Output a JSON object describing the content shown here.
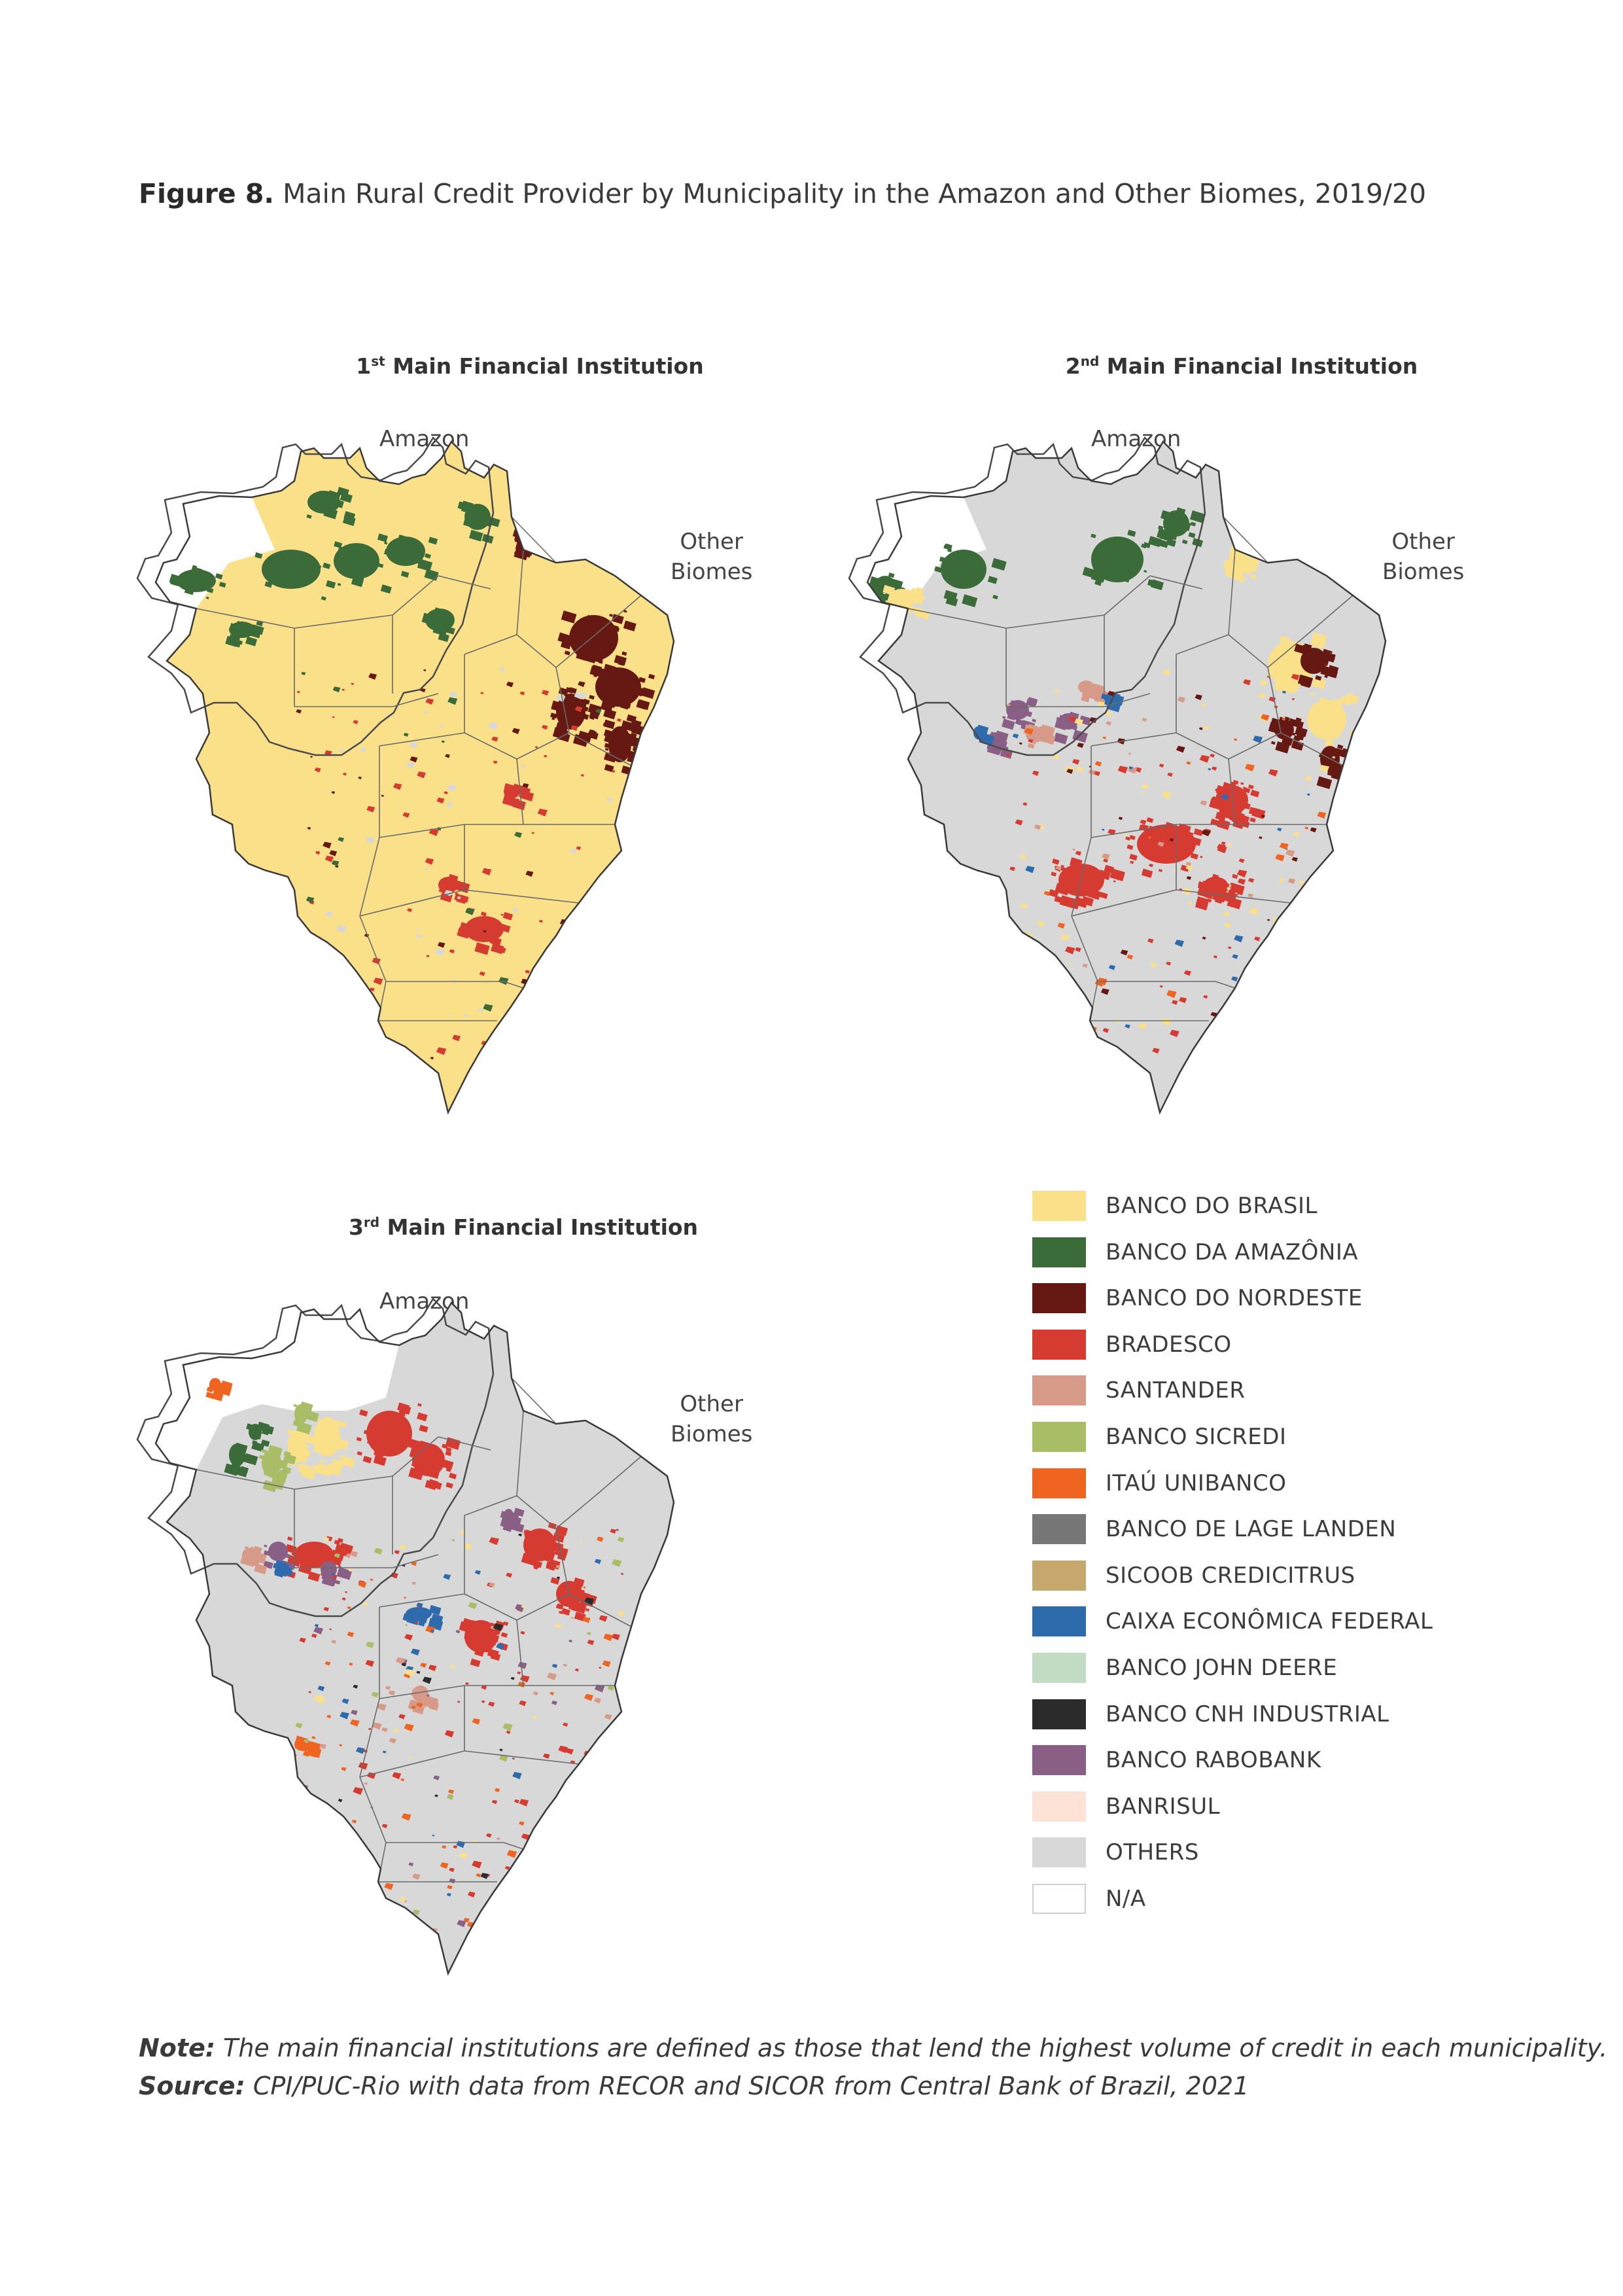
{
  "figure": {
    "label": "Figure 8.",
    "title": "Main Rural Credit Provider by Municipality in the Amazon and Other Biomes, 2019/20"
  },
  "panels": [
    {
      "rank": "1",
      "suffix": "st",
      "title": " Main Financial Institution",
      "amazon_label": "Amazon",
      "other_label_1": "Other",
      "other_label_2": "Biomes",
      "dominant": "BANCO DO BRASIL"
    },
    {
      "rank": "2",
      "suffix": "nd",
      "title": " Main Financial Institution",
      "amazon_label": "Amazon",
      "other_label_1": "Other",
      "other_label_2": "Biomes",
      "dominant": "BRADESCO"
    },
    {
      "rank": "3",
      "suffix": "rd",
      "title": " Main Financial Institution",
      "amazon_label": "Amazon",
      "other_label_1": "Other",
      "other_label_2": "Biomes",
      "dominant": "OTHERS"
    }
  ],
  "legend": [
    {
      "label": "BANCO DO BRASIL",
      "color": "#fbe08a"
    },
    {
      "label": "BANCO DA AMAZÔNIA",
      "color": "#3c6b3a"
    },
    {
      "label": "BANCO DO NORDESTE",
      "color": "#661812"
    },
    {
      "label": "BRADESCO",
      "color": "#d53b30"
    },
    {
      "label": "SANTANDER",
      "color": "#d89a88"
    },
    {
      "label": "BANCO SICREDI",
      "color": "#a9bd67"
    },
    {
      "label": "ITAÚ UNIBANCO",
      "color": "#ee6420"
    },
    {
      "label": "BANCO DE LAGE LANDEN",
      "color": "#777777"
    },
    {
      "label": "SICOOB CREDICITRUS",
      "color": "#c6a86f"
    },
    {
      "label": "CAIXA ECONÔMICA FEDERAL",
      "color": "#2e6bad"
    },
    {
      "label": "BANCO JOHN DEERE",
      "color": "#c2dcc4"
    },
    {
      "label": "BANCO CNH INDUSTRIAL",
      "color": "#2b2b2b"
    },
    {
      "label": "BANCO RABOBANK",
      "color": "#8a5f86"
    },
    {
      "label": "BANRISUL",
      "color": "#fde2d6"
    },
    {
      "label": "OTHERS",
      "color": "#d8d8d8"
    },
    {
      "label": "N/A",
      "color": "#ffffff"
    }
  ],
  "note": {
    "note_label": "Note:",
    "note_text": " The main financial institutions are defined as those that lend the highest volume of credit in each municipality.",
    "source_label": "Source:",
    "source_text": " CPI/PUC-Rio with data from RECOR and SICOR from Central Bank of Brazil, 2021"
  }
}
